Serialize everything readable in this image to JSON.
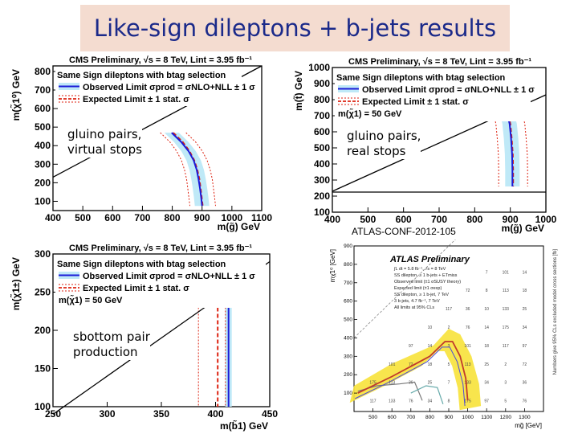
{
  "slide": {
    "title": "Like-sign dileptons + b-jets results",
    "atlas_ref": "ATLAS-CONF-2012-105"
  },
  "legend_text": {
    "header": "Same Sign dileptons with btag selection",
    "observed": "Observed Limit σprod = σNLO+NLL ± 1 σ",
    "expected": "Expected Limit ± 1 stat. σ",
    "lsp": "m(χ̃1) = 50 GeV"
  },
  "chart_data": [
    {
      "type": "line",
      "id": "gluino-virtual",
      "title": "CMS Preliminary, √s = 8 TeV, Lint = 3.95 fb⁻¹",
      "annotation": "gluino pairs,\nvirtual stops",
      "xlabel": "m(g̃) GeV",
      "ylabel": "m(χ̃1⁰) GeV",
      "xlim": [
        400,
        1100
      ],
      "ylim": [
        50,
        830
      ],
      "xticks": [
        "400",
        "500",
        "600",
        "700",
        "800",
        "900",
        "1000",
        "1100"
      ],
      "yticks": [
        "100",
        "200",
        "300",
        "400",
        "500",
        "600",
        "700",
        "800"
      ],
      "diagonal": [
        [
          400,
          230
        ],
        [
          1100,
          830
        ]
      ],
      "observed": [
        [
          798,
          470
        ],
        [
          830,
          420
        ],
        [
          855,
          370
        ],
        [
          872,
          320
        ],
        [
          882,
          270
        ],
        [
          888,
          220
        ],
        [
          893,
          170
        ],
        [
          897,
          120
        ],
        [
          900,
          75
        ]
      ],
      "observed_band_offset": 18,
      "expected": [
        [
          803,
          470
        ],
        [
          835,
          420
        ],
        [
          858,
          370
        ],
        [
          874,
          320
        ],
        [
          884,
          270
        ],
        [
          891,
          220
        ],
        [
          895,
          170
        ],
        [
          899,
          120
        ],
        [
          902,
          75
        ]
      ],
      "expected_band_offset": 32
    },
    {
      "type": "line",
      "id": "gluino-real",
      "title": "CMS Preliminary, √s = 8 TeV, Lint = 3.95 fb⁻¹",
      "annotation": "gluino pairs,\nreal stops",
      "xlabel": "m(g̃) GeV",
      "ylabel": "m(t̃) GeV",
      "xlim": [
        400,
        1000
      ],
      "ylim": [
        100,
        1000
      ],
      "xticks": [
        "400",
        "500",
        "600",
        "700",
        "800",
        "900",
        "1000"
      ],
      "yticks": [
        "100",
        "200",
        "300",
        "400",
        "500",
        "600",
        "700",
        "800",
        "900",
        "1000"
      ],
      "diagonal": [
        [
          400,
          230
        ],
        [
          1000,
          830
        ]
      ],
      "horizontal_line": 225,
      "observed": [
        [
          848,
          830
        ],
        [
          873,
          780
        ],
        [
          890,
          720
        ],
        [
          898,
          650
        ],
        [
          902,
          560
        ],
        [
          905,
          460
        ],
        [
          906,
          360
        ],
        [
          906,
          260
        ]
      ],
      "observed_band_offset": 18,
      "expected": [
        [
          853,
          830
        ],
        [
          877,
          780
        ],
        [
          893,
          720
        ],
        [
          900,
          650
        ],
        [
          904,
          560
        ],
        [
          907,
          460
        ],
        [
          908,
          360
        ],
        [
          908,
          260
        ]
      ],
      "expected_band_offset": 36
    },
    {
      "type": "line",
      "id": "sbottom",
      "title": "CMS Preliminary, √s = 8 TeV, Lint = 3.95 fb⁻¹",
      "annotation": "sbottom pair\nproduction",
      "xlabel": "m(b̃1) GeV",
      "ylabel": "m(χ̃1±) GeV",
      "xlim": [
        250,
        450
      ],
      "ylim": [
        100,
        300
      ],
      "xticks": [
        "250",
        "300",
        "350",
        "400",
        "450"
      ],
      "yticks": [
        "100",
        "150",
        "200",
        "250",
        "300"
      ],
      "diagonal": [
        [
          250,
          90
        ],
        [
          450,
          290
        ]
      ],
      "observed_x": 412,
      "observed_band_offset": 4,
      "expected_x": 402,
      "expected_band_offset": 24,
      "vline_top": 230
    },
    {
      "type": "heatmap",
      "id": "atlas",
      "title": "ATLAS Preliminary",
      "xlabel": "mg̃ [GeV]",
      "ylabel": "mχ̃1⁰ [GeV]",
      "zlabel": "Numbers give 95% CLs excluded model cross sections [fb]",
      "xlim": [
        400,
        1400
      ],
      "ylim": [
        0,
        900
      ],
      "xticks": [
        "500",
        "600",
        "700",
        "800",
        "900",
        "1000",
        "1100",
        "1200",
        "1300"
      ],
      "yticks": [
        "100",
        "200",
        "300",
        "400",
        "500",
        "600",
        "700",
        "800",
        "900"
      ],
      "legend": [
        "∫L dt = 5.8 fb⁻¹, √s = 8 TeV",
        "SS dilepton, ≥ 1 b-jets + ETmiss",
        "Observed limit (±1 σSUSY theory)",
        "Expected limit (±1 σexp)",
        "SS dilepton, ≥ 1 b-jet, 7 TeV",
        "3 b-jets, 4.7 fb⁻¹, 7 TeV",
        "All limits at 95% CLs"
      ],
      "observed": [
        [
          420,
          100
        ],
        [
          600,
          190
        ],
        [
          800,
          300
        ],
        [
          880,
          380
        ],
        [
          920,
          380
        ],
        [
          960,
          300
        ],
        [
          990,
          180
        ],
        [
          1000,
          60
        ]
      ],
      "band": [
        [
          400,
          140
        ],
        [
          600,
          260
        ],
        [
          820,
          360
        ],
        [
          900,
          450
        ],
        [
          960,
          420
        ],
        [
          1020,
          300
        ],
        [
          1060,
          150
        ],
        [
          1070,
          30
        ]
      ],
      "seven_tev": [
        [
          420,
          110
        ],
        [
          520,
          140
        ],
        [
          640,
          150
        ],
        [
          720,
          160
        ],
        [
          760,
          60
        ]
      ],
      "threeb": [
        [
          700,
          100
        ],
        [
          780,
          140
        ],
        [
          840,
          130
        ],
        [
          870,
          40
        ]
      ],
      "grid_values": [
        "117",
        "175",
        "133",
        "113",
        "101",
        "76",
        "36",
        "72",
        "97",
        "34",
        "25",
        "18",
        "14",
        "10",
        "8",
        "7",
        "5",
        "3",
        "2"
      ]
    }
  ]
}
